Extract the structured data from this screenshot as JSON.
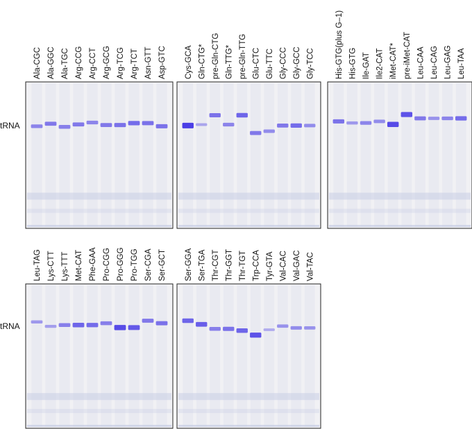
{
  "row_label": "tRNA",
  "colors": {
    "gel_background": "#f1f1f4",
    "gel_border": "#222222",
    "band_color": "#4b3ee6",
    "smear_color": "#c8cde6"
  },
  "gels": [
    {
      "name": "gel-1",
      "lanes": [
        {
          "label": "Ala-CGC",
          "intensity": 0.45,
          "mobility": 0.55
        },
        {
          "label": "Ala-GGC",
          "intensity": 0.55,
          "mobility": 0.35
        },
        {
          "label": "Ala-TGC",
          "intensity": 0.5,
          "mobility": 0.6
        },
        {
          "label": "Arg-CCG",
          "intensity": 0.55,
          "mobility": 0.4
        },
        {
          "label": "Arg-CCT",
          "intensity": 0.45,
          "mobility": 0.25
        },
        {
          "label": "Arg-GCG",
          "intensity": 0.55,
          "mobility": 0.45
        },
        {
          "label": "Arg-TCG",
          "intensity": 0.6,
          "mobility": 0.45
        },
        {
          "label": "Arg-TCT",
          "intensity": 0.65,
          "mobility": 0.3
        },
        {
          "label": "Asn-GTT",
          "intensity": 0.6,
          "mobility": 0.3
        },
        {
          "label": "Asp-GTC",
          "intensity": 0.6,
          "mobility": 0.55
        }
      ]
    },
    {
      "name": "gel-2",
      "lanes": [
        {
          "label": "Cys-GCA",
          "intensity": 1.0,
          "mobility": 0.55
        },
        {
          "label": "Gln-CTG*",
          "intensity": 0.2,
          "mobility": 0.5
        },
        {
          "label": "pre-Gln-CTG",
          "intensity": 0.6,
          "mobility": 0.0
        },
        {
          "label": "Gln-TTG*",
          "intensity": 0.45,
          "mobility": 0.5
        },
        {
          "label": "pre-Gln-TTG",
          "intensity": 0.7,
          "mobility": 0.0
        },
        {
          "label": "Glu-CTC",
          "intensity": 0.55,
          "mobility": 0.95
        },
        {
          "label": "Glu-TTC",
          "intensity": 0.4,
          "mobility": 0.85
        },
        {
          "label": "Gly-CCC",
          "intensity": 0.55,
          "mobility": 0.55
        },
        {
          "label": "Gly-GCC",
          "intensity": 0.65,
          "mobility": 0.55
        },
        {
          "label": "Gly-TCC",
          "intensity": 0.4,
          "mobility": 0.55
        }
      ]
    },
    {
      "name": "gel-3",
      "lanes": [
        {
          "label": "His-GTG(plus G–1)",
          "intensity": 0.6,
          "mobility": 0.45
        },
        {
          "label": "His-GTG",
          "intensity": 0.3,
          "mobility": 0.55
        },
        {
          "label": "Ile-GAT",
          "intensity": 0.45,
          "mobility": 0.55
        },
        {
          "label": "Ile2-CAT",
          "intensity": 0.4,
          "mobility": 0.45
        },
        {
          "label": "iMet-CAT*",
          "intensity": 0.9,
          "mobility": 0.65
        },
        {
          "label": "pre-iMet-CAT",
          "intensity": 0.85,
          "mobility": 0.0
        },
        {
          "label": "Leu-CAA",
          "intensity": 0.55,
          "mobility": 0.25
        },
        {
          "label": "Leu-CAG",
          "intensity": 0.35,
          "mobility": 0.25
        },
        {
          "label": "Leu-GAG",
          "intensity": 0.45,
          "mobility": 0.25
        },
        {
          "label": "Leu-TAA",
          "intensity": 0.65,
          "mobility": 0.25
        }
      ]
    },
    {
      "name": "gel-4",
      "lanes": [
        {
          "label": "Leu-TAG",
          "intensity": 0.3,
          "mobility": 0.1
        },
        {
          "label": "Lys-CTT",
          "intensity": 0.25,
          "mobility": 0.45
        },
        {
          "label": "Lys-TTT",
          "intensity": 0.5,
          "mobility": 0.35
        },
        {
          "label": "Met-CAT",
          "intensity": 0.7,
          "mobility": 0.35
        },
        {
          "label": "Phe-GAA",
          "intensity": 0.65,
          "mobility": 0.35
        },
        {
          "label": "Pro-CGG",
          "intensity": 0.5,
          "mobility": 0.2
        },
        {
          "label": "Pro-GGG",
          "intensity": 0.9,
          "mobility": 0.55
        },
        {
          "label": "Pro-TGG",
          "intensity": 0.8,
          "mobility": 0.55
        },
        {
          "label": "Ser-CGA",
          "intensity": 0.55,
          "mobility": 0.0
        },
        {
          "label": "Ser-GCT",
          "intensity": 0.6,
          "mobility": 0.2
        }
      ]
    },
    {
      "name": "gel-5",
      "lanes": [
        {
          "label": "Ser-GGA",
          "intensity": 0.7,
          "mobility": 0.0
        },
        {
          "label": "Ser-TGA",
          "intensity": 0.75,
          "mobility": 0.2
        },
        {
          "label": "Thr-CGT",
          "intensity": 0.5,
          "mobility": 0.45
        },
        {
          "label": "Thr-GGT",
          "intensity": 0.6,
          "mobility": 0.45
        },
        {
          "label": "Thr-TGT",
          "intensity": 0.7,
          "mobility": 0.55
        },
        {
          "label": "Trp-CCA",
          "intensity": 0.85,
          "mobility": 0.8
        },
        {
          "label": "Tyr-GTA",
          "intensity": 0.15,
          "mobility": 0.5
        },
        {
          "label": "Val-CAC",
          "intensity": 0.35,
          "mobility": 0.3
        },
        {
          "label": "Val-GAC",
          "intensity": 0.4,
          "mobility": 0.4
        },
        {
          "label": "Val-TAC",
          "intensity": 0.35,
          "mobility": 0.4
        }
      ]
    }
  ]
}
